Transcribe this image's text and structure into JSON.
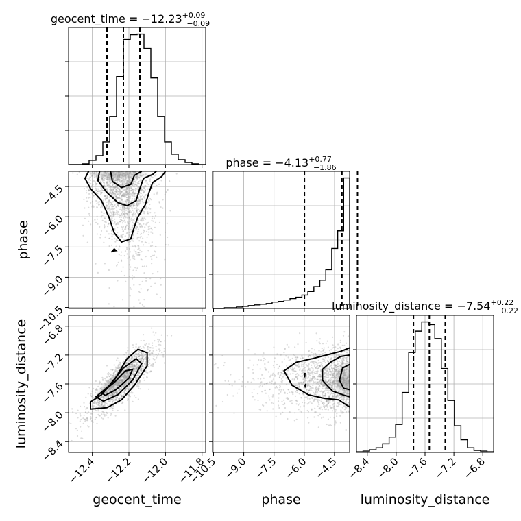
{
  "chart_data": {
    "type": "scatter",
    "subtype": "corner plot (1-D marginal histograms + 2-D density contours)",
    "parameters": [
      "geocent_time",
      "phase",
      "luminosity_distance"
    ],
    "axis_labels": {
      "geocent_time": "geocent_time",
      "phase": "phase",
      "luminosity_distance": "luminosity_distance"
    },
    "ranges": {
      "geocent_time": [
        -12.53,
        -11.78
      ],
      "phase": [
        -10.55,
        -3.75
      ],
      "luminosity_distance": [
        -8.55,
        -6.65
      ]
    },
    "ticks": {
      "geocent_time": [
        "−12.4",
        "−12.2",
        "−12.0",
        "−11.8"
      ],
      "phase": [
        "−10.5",
        "−9.0",
        "−7.5",
        "−6.0",
        "−4.5"
      ],
      "luminosity_distance": [
        "−8.4",
        "−8.0",
        "−7.6",
        "−7.2",
        "−6.8"
      ]
    },
    "tick_values": {
      "geocent_time": [
        -12.4,
        -12.2,
        -12.0,
        -11.8
      ],
      "phase": [
        -10.5,
        -9.0,
        -7.5,
        -6.0,
        -4.5
      ],
      "luminosity_distance": [
        -8.4,
        -8.0,
        -7.6,
        -7.2,
        -6.8
      ]
    },
    "grid": true,
    "titles": [
      {
        "param": "geocent_time",
        "main": "geocent_time = −12.23",
        "sup": "+0.09",
        "sub": "−0.09"
      },
      {
        "param": "phase",
        "main": "phase = −4.13",
        "sup": "+0.77",
        "sub": "−1.86"
      },
      {
        "param": "luminosity_distance",
        "main": "luminosity_distance = −7.54",
        "sup": "+0.22",
        "sub": "−0.22"
      }
    ],
    "medians": {
      "geocent_time": -12.23,
      "phase": -4.13,
      "luminosity_distance": -7.54
    },
    "quantiles": {
      "geocent_time": [
        -12.32,
        -12.23,
        -12.14
      ],
      "phase": [
        -5.99,
        -4.13,
        -3.36
      ],
      "luminosity_distance": [
        -7.76,
        -7.54,
        -7.32
      ]
    },
    "histograms": {
      "geocent_time": [
        0,
        0,
        1,
        6,
        13,
        33,
        70,
        128,
        182,
        189,
        190,
        169,
        126,
        70,
        33,
        15,
        7,
        3,
        1,
        0
      ],
      "phase": [
        0,
        0,
        1,
        1,
        2,
        3,
        4,
        5,
        6,
        7,
        9,
        10,
        12,
        14,
        16,
        19,
        24,
        31,
        40,
        55,
        85,
        110,
        185
      ],
      "luminosity_distance": [
        1,
        2,
        4,
        7,
        13,
        23,
        42,
        90,
        150,
        182,
        196,
        192,
        171,
        126,
        78,
        40,
        19,
        7,
        3,
        2,
        1
      ]
    },
    "correlations": [
      {
        "x": "geocent_time",
        "y": "phase",
        "note": "posterior piles up near phase −3.8; tail extends to low phase at late times"
      },
      {
        "x": "geocent_time",
        "y": "luminosity_distance",
        "note": "strong positive correlation, peak near (−12.33, −7.65)"
      },
      {
        "x": "phase",
        "y": "luminosity_distance",
        "note": "peak near (−3.8, −7.55), broad tail toward low phase"
      }
    ]
  }
}
